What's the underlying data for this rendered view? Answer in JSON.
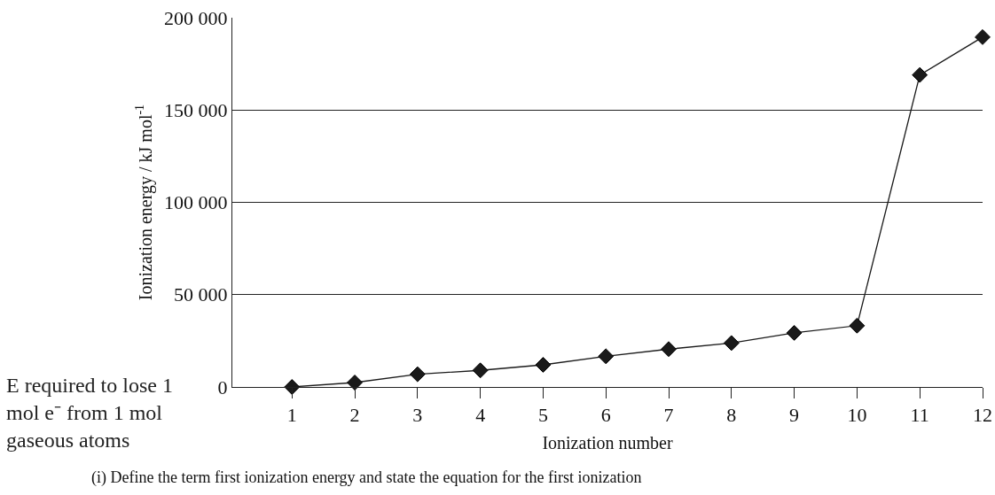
{
  "chart_data": {
    "type": "line",
    "xlabel": "Ionization number",
    "ylabel": "Ionization energy / kJ mol$^{-1}$",
    "x": [
      1,
      2,
      3,
      4,
      5,
      6,
      7,
      8,
      9,
      10,
      11,
      12
    ],
    "series": [
      {
        "color": "#1a1a1a",
        "values": [
          0,
          2400,
          6900,
          9000,
          12000,
          16600,
          20500,
          23800,
          29300,
          33200,
          169000,
          189500
        ]
      }
    ],
    "xlim": [
      0.05,
      12
    ],
    "xticks": [
      1,
      2,
      3,
      4,
      5,
      6,
      7,
      8,
      9,
      10,
      11,
      12
    ],
    "ylim": [
      0,
      200000
    ],
    "yticks": [
      {
        "value": 0,
        "label": "0"
      },
      {
        "value": 50000,
        "label": "50 000"
      },
      {
        "value": 100000,
        "label": "100 000"
      },
      {
        "value": 150000,
        "label": "150 000"
      },
      {
        "value": 200000,
        "label": "200 000"
      }
    ],
    "grid": "y",
    "marker": "diamond",
    "line_style": "solid",
    "annotations": [
      "E required to lose 1 mol e⁻ from 1 mol gaseous atoms",
      "(i) Define the term first ionization energy and state the equation for the first ionization"
    ]
  }
}
